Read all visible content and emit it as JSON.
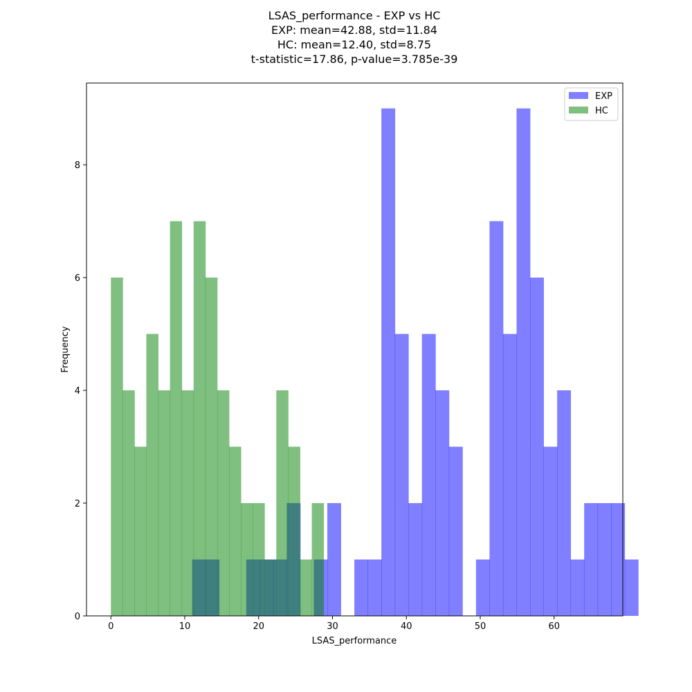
{
  "chart_data": {
    "type": "bar",
    "title_lines": [
      "LSAS_performance - EXP vs HC",
      "EXP: mean=42.88, std=11.84",
      "HC: mean=12.40, std=8.75",
      "t-statistic=17.86, p-value=3.785e-39"
    ],
    "xlabel": "LSAS_performance",
    "ylabel": "Frequency",
    "xlim": [
      -3.3,
      69.3
    ],
    "ylim": [
      0,
      9.45
    ],
    "xticks": [
      0,
      10,
      20,
      30,
      40,
      50,
      60
    ],
    "yticks": [
      0,
      2,
      4,
      6,
      8
    ],
    "grid": false,
    "legend_position": "top-right",
    "series": [
      {
        "name": "EXP",
        "color": "#0000ff",
        "opacity": 0.5,
        "bin_start": 11,
        "bin_width": 1.83,
        "counts": [
          1,
          1,
          0,
          0,
          1,
          1,
          1,
          2,
          0,
          1,
          2,
          0,
          1,
          1,
          9,
          5,
          2,
          5,
          4,
          3,
          0,
          1,
          7,
          5,
          9,
          6,
          3,
          4,
          1,
          2,
          2,
          2,
          1
        ]
      },
      {
        "name": "HC",
        "color": "#008000",
        "opacity": 0.5,
        "bin_start": 0,
        "bin_width": 1.6,
        "counts": [
          6,
          4,
          3,
          5,
          4,
          7,
          4,
          7,
          6,
          4,
          3,
          2,
          2,
          1,
          4,
          3,
          1,
          2
        ]
      }
    ]
  }
}
